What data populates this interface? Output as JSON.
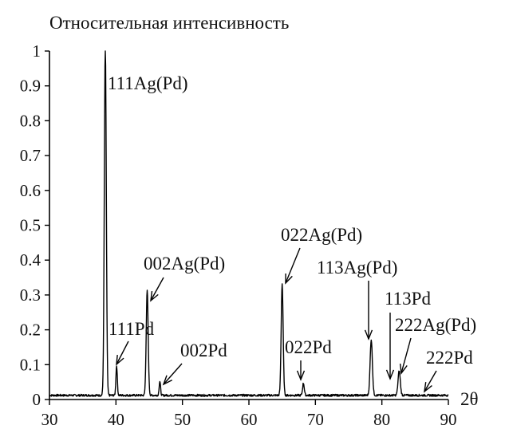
{
  "chart_data": {
    "type": "line",
    "title": "Относительная интенсивность",
    "xlabel": "2θ",
    "ylabel": "",
    "xlim": [
      30,
      90
    ],
    "ylim": [
      0,
      1
    ],
    "x_ticks": [
      "30",
      "40",
      "50",
      "60",
      "70",
      "80",
      "90"
    ],
    "y_ticks": [
      "0",
      "0.1",
      "0.2",
      "0.3",
      "0.4",
      "0.5",
      "0.6",
      "0.7",
      "0.8",
      "0.9",
      "1"
    ],
    "grid": false,
    "legend": "none",
    "line_color": "#000000",
    "baseline_intensity": 0.012,
    "peaks": [
      {
        "x": 38.4,
        "y": 1.0,
        "width": 0.35
      },
      {
        "x": 40.1,
        "y": 0.085,
        "width": 0.25
      },
      {
        "x": 44.7,
        "y": 0.3,
        "width": 0.35
      },
      {
        "x": 46.6,
        "y": 0.04,
        "width": 0.25
      },
      {
        "x": 65.0,
        "y": 0.32,
        "width": 0.35
      },
      {
        "x": 68.2,
        "y": 0.035,
        "width": 0.3
      },
      {
        "x": 78.4,
        "y": 0.16,
        "width": 0.4
      },
      {
        "x": 82.6,
        "y": 0.07,
        "width": 0.4
      }
    ],
    "annotations": [
      {
        "text": "111Ag(Pd)",
        "x": 38.4,
        "y": 1.0,
        "arrow": false
      },
      {
        "text": "111Pd",
        "x": 40.1,
        "y": 0.09,
        "arrow": true
      },
      {
        "text": "002Ag(Pd)",
        "x": 44.8,
        "y": 0.3,
        "arrow": true
      },
      {
        "text": "002Pd",
        "x": 46.6,
        "y": 0.04,
        "arrow": true
      },
      {
        "text": "022Ag(Pd)",
        "x": 65.1,
        "y": 0.33,
        "arrow": true
      },
      {
        "text": "022Pd",
        "x": 68.2,
        "y": 0.035,
        "arrow": true
      },
      {
        "text": "113Ag(Pd)",
        "x": 78.4,
        "y": 0.16,
        "arrow": true
      },
      {
        "text": "113Pd",
        "x": 81.8,
        "y": 0.02,
        "arrow": true
      },
      {
        "text": "222Ag(Pd)",
        "x": 83.0,
        "y": 0.075,
        "arrow": true
      },
      {
        "text": "222Pd",
        "x": 87.0,
        "y": 0.02,
        "arrow": true
      }
    ]
  }
}
